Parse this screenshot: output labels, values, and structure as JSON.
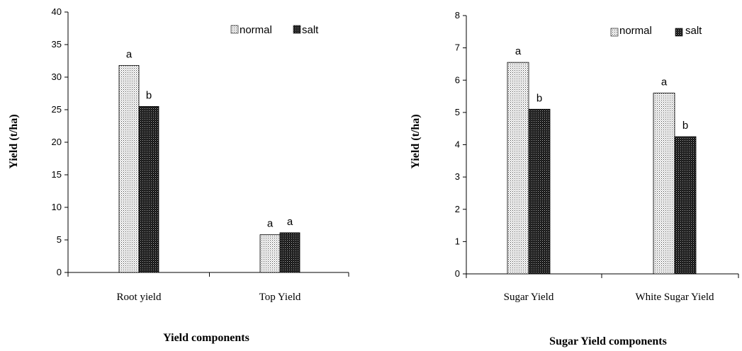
{
  "chart_data": [
    {
      "type": "bar",
      "categories": [
        "Root yield",
        "Top Yield"
      ],
      "series": [
        {
          "name": "normal",
          "values": [
            31.8,
            5.8
          ],
          "letters": [
            "a",
            "a"
          ]
        },
        {
          "name": "salt",
          "values": [
            25.5,
            6.1
          ],
          "letters": [
            "b",
            "a"
          ]
        }
      ],
      "xlabel": "Yield components",
      "ylabel": "Yield (t/ha)",
      "ylim": [
        0,
        40
      ],
      "yticks": [
        0,
        5,
        10,
        15,
        20,
        25,
        30,
        35,
        40
      ],
      "legend_position": "top-right",
      "grid": false
    },
    {
      "type": "bar",
      "categories": [
        "Sugar Yield",
        "White Sugar Yield"
      ],
      "series": [
        {
          "name": "normal",
          "values": [
            6.55,
            5.6
          ],
          "letters": [
            "a",
            "a"
          ]
        },
        {
          "name": "salt",
          "values": [
            5.1,
            4.25
          ],
          "letters": [
            "b",
            "b"
          ]
        }
      ],
      "xlabel": "Sugar Yield components",
      "ylabel": "Yield (t/ha)",
      "ylim": [
        0,
        8
      ],
      "yticks": [
        0,
        1,
        2,
        3,
        4,
        5,
        6,
        7,
        8
      ],
      "legend_position": "top-right",
      "grid": false
    }
  ],
  "colors": {
    "normal_pattern": "#d9d9d9",
    "salt_pattern": "#1a1a1a",
    "axis": "#000000"
  }
}
